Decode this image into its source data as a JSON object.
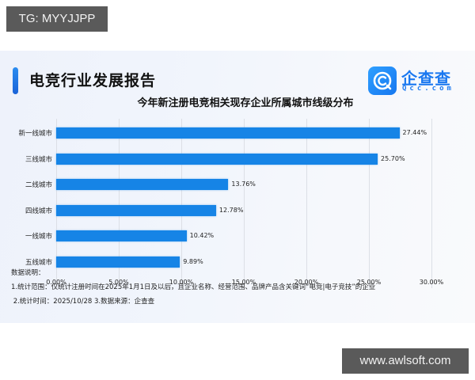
{
  "watermarks": {
    "top": "TG: MYYJJPP",
    "bottom": "www.awlsoft.com"
  },
  "header": {
    "report_title": "电竞行业发展报告",
    "logo_name": "企查查",
    "logo_sub": "Qcc.com",
    "accent_color": "#1684e6"
  },
  "chart_data": {
    "type": "bar",
    "orientation": "horizontal",
    "title": "今年新注册电竞相关现存企业所属城市线级分布",
    "categories": [
      "新一线城市",
      "三线城市",
      "二线城市",
      "四线城市",
      "一线城市",
      "五线城市"
    ],
    "values": [
      27.44,
      25.7,
      13.76,
      12.78,
      10.42,
      9.89
    ],
    "value_labels": [
      "27.44%",
      "25.70%",
      "13.76%",
      "12.78%",
      "10.42%",
      "9.89%"
    ],
    "xlabel": "",
    "ylabel": "",
    "xlim": [
      0,
      30
    ],
    "x_ticks": [
      "0.00%",
      "5.00%",
      "10.00%",
      "15.00%",
      "20.00%",
      "25.00%",
      "30.00%"
    ],
    "grid": "vertical",
    "legend": "none",
    "bar_color": "#1684e6"
  },
  "notes": {
    "heading": "数据说明：",
    "line1": "1.统计范围：仅统计注册时间在2025年1月1日及以后，且企业名称、经营范围、品牌产品含关键词“电竞|电子竞技”的企业",
    "line2": " 2.统计时间：2025/10/28 3.数据来源：企查查"
  }
}
